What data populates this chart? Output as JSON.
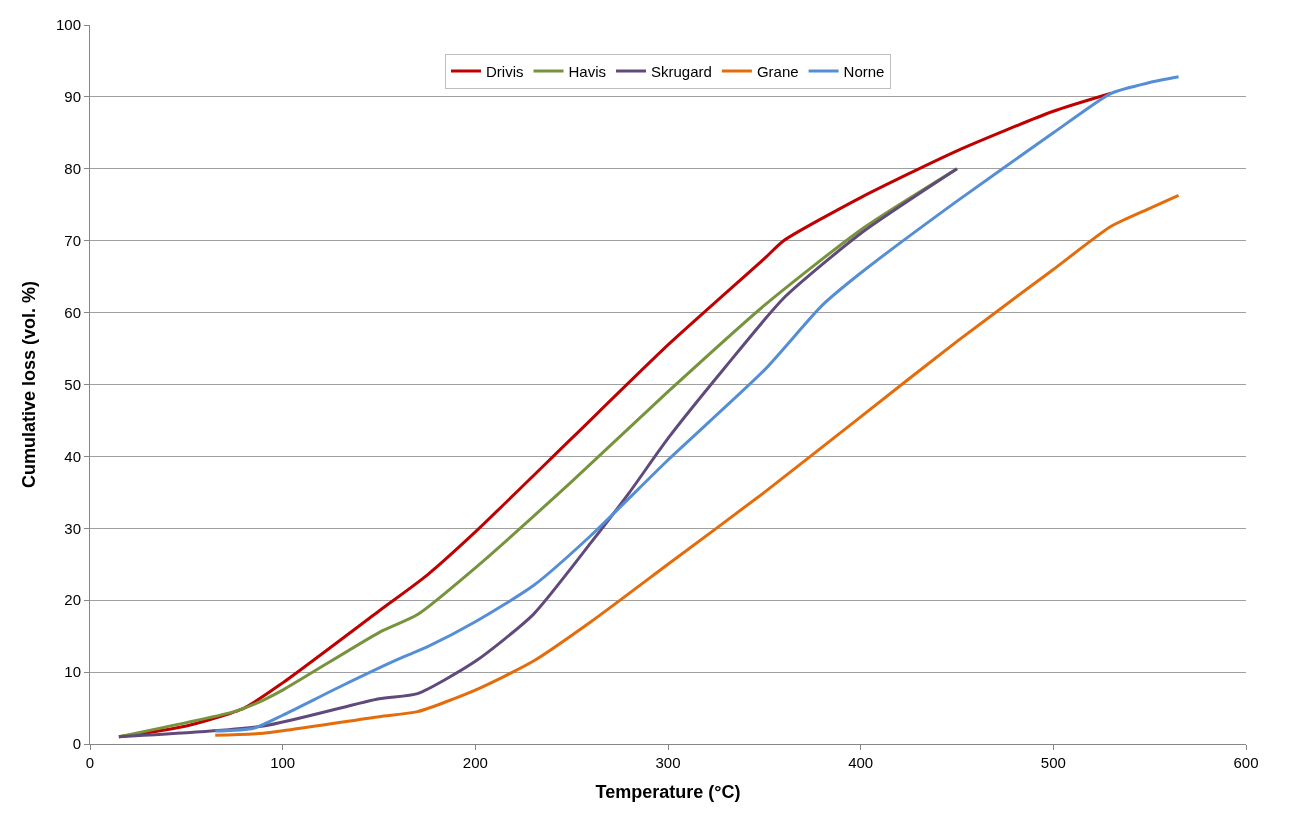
{
  "chart_data": {
    "type": "line",
    "xlabel": "Temperature (°C)",
    "ylabel": "Cumulative loss (vol. %)",
    "xlim": [
      0,
      600
    ],
    "xticks": [
      0,
      100,
      200,
      300,
      400,
      500,
      600
    ],
    "ylim": [
      0,
      100
    ],
    "yticks": [
      0,
      10,
      20,
      30,
      40,
      50,
      60,
      70,
      80,
      90,
      100
    ],
    "grid": "y",
    "legend": "top",
    "marker": "none",
    "line_style": "solid",
    "series": [
      {
        "name": "Drivis",
        "color": "#c00000",
        "x": [
          15,
          50,
          80,
          100,
          150,
          175,
          200,
          250,
          300,
          350,
          360,
          400,
          450,
          500,
          530
        ],
        "values": [
          1,
          2.5,
          5,
          8.5,
          18.5,
          23.5,
          29.5,
          42.5,
          55.5,
          67.5,
          70,
          76,
          82.5,
          88,
          90.5
        ]
      },
      {
        "name": "Havis",
        "color": "#77933c",
        "x": [
          15,
          75,
          85,
          100,
          150,
          170,
          200,
          250,
          300,
          350,
          400,
          450
        ],
        "values": [
          1,
          4.5,
          5.5,
          7.5,
          15.5,
          18,
          24.5,
          36.5,
          49,
          61,
          71.5,
          80
        ]
      },
      {
        "name": "Skrugard",
        "color": "#604a7b",
        "x": [
          15,
          90,
          150,
          170,
          200,
          230,
          260,
          280,
          300,
          330,
          360,
          400,
          450
        ],
        "values": [
          1,
          2.5,
          6.3,
          7,
          11.5,
          18,
          28,
          35,
          42.5,
          52.5,
          62,
          71,
          80
        ]
      },
      {
        "name": "Grane",
        "color": "#e46c0a",
        "x": [
          65,
          90,
          150,
          170,
          200,
          230,
          260,
          300,
          350,
          400,
          450,
          500,
          530,
          550,
          565
        ],
        "values": [
          1.2,
          1.5,
          3.8,
          4.5,
          7.5,
          11.5,
          17,
          25,
          35,
          45.5,
          56,
          66,
          72,
          74.5,
          76.3
        ]
      },
      {
        "name": "Norne",
        "color": "#558ed5",
        "x": [
          65,
          85,
          100,
          130,
          160,
          175,
          200,
          230,
          260,
          300,
          350,
          380,
          400,
          450,
          500,
          530,
          550,
          565
        ],
        "values": [
          1.8,
          2.2,
          4,
          8,
          11.8,
          13.5,
          17,
          22,
          29,
          39.5,
          52,
          61,
          65.5,
          75.5,
          85,
          90.5,
          92,
          92.8
        ]
      }
    ]
  }
}
